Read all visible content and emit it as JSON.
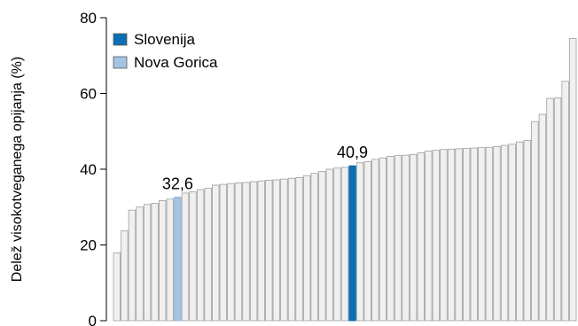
{
  "chart_data": {
    "type": "bar",
    "ylabel": "Delež visokotveganega opijanja (%)",
    "ylim": [
      0,
      80
    ],
    "yticks": [
      0,
      20,
      40,
      60,
      80
    ],
    "grid": false,
    "legend_position": "top-left",
    "colors": {
      "default": "#f0f0f0",
      "default_border": "#9e9e9e",
      "slovenija": "#0a6fb5",
      "nova_gorica": "#a3c4e3"
    },
    "legend": [
      {
        "label": "Slovenija",
        "color": "#0a6fb5"
      },
      {
        "label": "Nova Gorica",
        "color": "#a3c4e3"
      }
    ],
    "values": [
      17.9,
      23.7,
      29.2,
      30.0,
      30.7,
      31.0,
      31.7,
      32.1,
      32.6,
      33.7,
      34.0,
      34.6,
      35.0,
      35.8,
      36.0,
      36.2,
      36.4,
      36.5,
      36.7,
      36.9,
      37.1,
      37.2,
      37.4,
      37.6,
      37.8,
      38.3,
      38.9,
      39.4,
      40.0,
      40.3,
      40.5,
      40.9,
      41.7,
      42.0,
      42.6,
      43.0,
      43.4,
      43.6,
      43.7,
      43.9,
      44.3,
      44.8,
      45.0,
      45.2,
      45.3,
      45.4,
      45.5,
      45.6,
      45.7,
      45.8,
      46.0,
      46.3,
      46.6,
      47.2,
      47.6,
      52.6,
      54.5,
      58.7,
      58.8,
      63.2,
      74.5
    ],
    "highlights": {
      "nova_gorica_index": 8,
      "slovenija_index": 31
    },
    "annotations": [
      {
        "text": "32,6",
        "index": 8
      },
      {
        "text": "40,9",
        "index": 31
      }
    ]
  }
}
